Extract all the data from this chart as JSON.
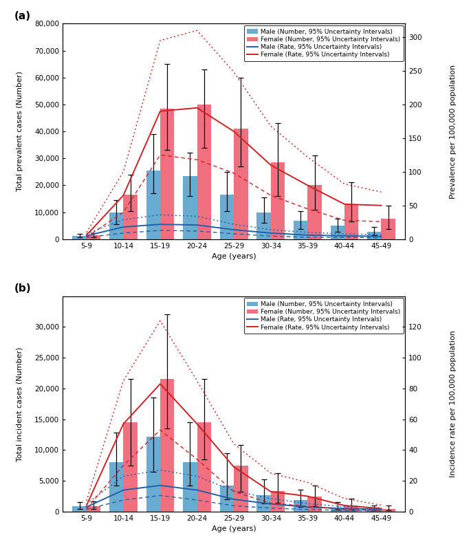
{
  "ages": [
    "5-9",
    "10-14",
    "15-19",
    "20-24",
    "25-29",
    "30-34",
    "35-39",
    "40-44",
    "45-49"
  ],
  "x_positions": [
    0,
    1,
    2,
    3,
    4,
    5,
    6,
    7,
    8
  ],
  "panel_a": {
    "ylabel_left": "Total prevalent cases (Number)",
    "ylabel_right": "Prevalence per 100,000 population",
    "xlabel": "Age (years)",
    "ylim_left": [
      0,
      80000
    ],
    "ylim_right": [
      0,
      320
    ],
    "yticks_left": [
      0,
      10000,
      20000,
      30000,
      40000,
      50000,
      60000,
      70000,
      80000
    ],
    "yticks_right": [
      0,
      50,
      100,
      150,
      200,
      250,
      300
    ],
    "male_bar": [
      1200,
      9800,
      25500,
      23500,
      16500,
      10000,
      6800,
      5000,
      2800
    ],
    "male_bar_lo": [
      600,
      5500,
      17000,
      16000,
      10500,
      6000,
      3800,
      2800,
      1400
    ],
    "male_bar_hi": [
      2000,
      14500,
      39000,
      32000,
      25000,
      15500,
      10500,
      7500,
      4500
    ],
    "female_bar": [
      1400,
      16500,
      48500,
      50000,
      41000,
      28500,
      20000,
      13000,
      7500
    ],
    "female_bar_lo": [
      800,
      10500,
      33000,
      34000,
      27000,
      16000,
      11000,
      6500,
      3800
    ],
    "female_bar_hi": [
      2200,
      24000,
      65000,
      63000,
      60000,
      43000,
      31000,
      21000,
      12500
    ],
    "male_rate": [
      5,
      18,
      22,
      21,
      14,
      9,
      6,
      5,
      4
    ],
    "male_rate_lo": [
      2.5,
      9,
      13,
      12,
      8,
      4.5,
      2.8,
      2.8,
      2.0
    ],
    "male_rate_hi": [
      8,
      29,
      36,
      34,
      22,
      14,
      10,
      8,
      6.5
    ],
    "female_rate": [
      6,
      65,
      190,
      195,
      160,
      110,
      80,
      52,
      50
    ],
    "female_rate_lo": [
      3,
      40,
      125,
      118,
      98,
      65,
      45,
      28,
      26
    ],
    "female_rate_hi": [
      10,
      100,
      295,
      310,
      248,
      168,
      122,
      82,
      70
    ]
  },
  "panel_b": {
    "ylabel_left": "Total incident cases (Number)",
    "ylabel_right": "Incidence rate per 100,000 population",
    "xlabel": "Age (years)",
    "ylim_left": [
      0,
      35000
    ],
    "ylim_right": [
      0,
      140
    ],
    "yticks_left": [
      0,
      5000,
      10000,
      15000,
      20000,
      25000,
      30000
    ],
    "yticks_right": [
      0,
      20,
      40,
      60,
      80,
      100,
      120
    ],
    "male_bar": [
      900,
      8000,
      12200,
      8000,
      4200,
      2700,
      1900,
      700,
      500
    ],
    "male_bar_lo": [
      450,
      4200,
      6500,
      4200,
      2000,
      1300,
      800,
      280,
      180
    ],
    "male_bar_hi": [
      1600,
      12800,
      18500,
      14500,
      9500,
      5200,
      3600,
      1600,
      950
    ],
    "female_bar": [
      900,
      14500,
      21500,
      14500,
      7500,
      3300,
      2500,
      1000,
      450
    ],
    "female_bar_lo": [
      450,
      7500,
      13500,
      8500,
      3200,
      1400,
      900,
      350,
      180
    ],
    "female_bar_hi": [
      1700,
      21500,
      32000,
      21500,
      10800,
      6200,
      4200,
      2100,
      1000
    ],
    "male_rate": [
      3,
      14,
      17,
      14,
      8,
      5,
      3,
      2,
      1.5
    ],
    "male_rate_lo": [
      1.5,
      7.5,
      10.5,
      7.5,
      3.8,
      2.3,
      1.4,
      0.7,
      0.5
    ],
    "male_rate_hi": [
      5,
      23,
      27,
      23,
      13.5,
      8.5,
      5.2,
      3.2,
      2.6
    ],
    "female_rate": [
      4,
      57,
      83,
      57,
      29,
      13,
      10,
      4,
      2
    ],
    "female_rate_lo": [
      2,
      30,
      53,
      34,
      13,
      5.5,
      3.5,
      1.3,
      0.7
    ],
    "female_rate_hi": [
      7,
      85,
      124,
      85,
      44,
      25,
      19,
      8.5,
      4.2
    ]
  },
  "male_color": "#6AABD2",
  "female_color": "#F07080",
  "male_line_color": "#2060A8",
  "female_line_color": "#D02020",
  "bar_width": 0.38,
  "legend_fontsize": 6.5,
  "axis_fontsize": 8,
  "tick_fontsize": 7.5
}
